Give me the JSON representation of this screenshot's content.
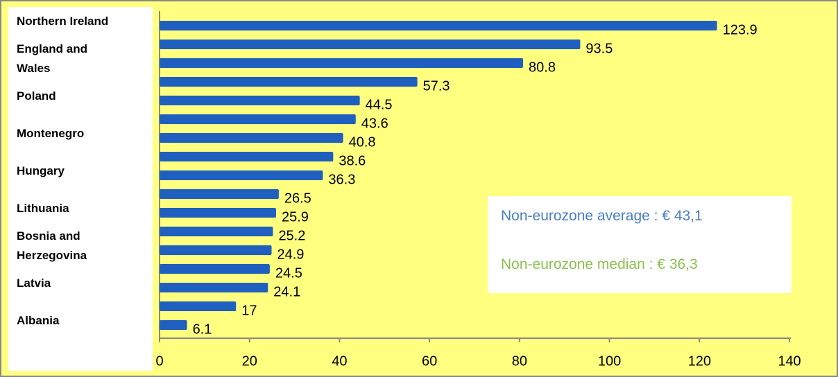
{
  "chart_data": {
    "type": "barh",
    "categories": [
      "Northern Ireland",
      null,
      "England and Wales",
      null,
      "Poland",
      null,
      "Montenegro",
      null,
      "Hungary",
      null,
      "Lithuania",
      null,
      "Bosnia and Herzegovina",
      null,
      "Latvia",
      null,
      "Albania"
    ],
    "values": [
      123.9,
      93.5,
      80.8,
      57.3,
      44.5,
      43.6,
      40.8,
      38.6,
      36.3,
      26.5,
      25.9,
      25.2,
      24.9,
      24.5,
      24.1,
      17,
      6.1
    ],
    "color": "#1f5fbf",
    "xlim": [
      0,
      140
    ],
    "xticks": [
      0,
      20,
      40,
      60,
      80,
      100,
      120,
      140
    ],
    "annotations": [
      "Non-eurozone average : € 43,1",
      "Non-eurozone median : € 36,3"
    ]
  }
}
